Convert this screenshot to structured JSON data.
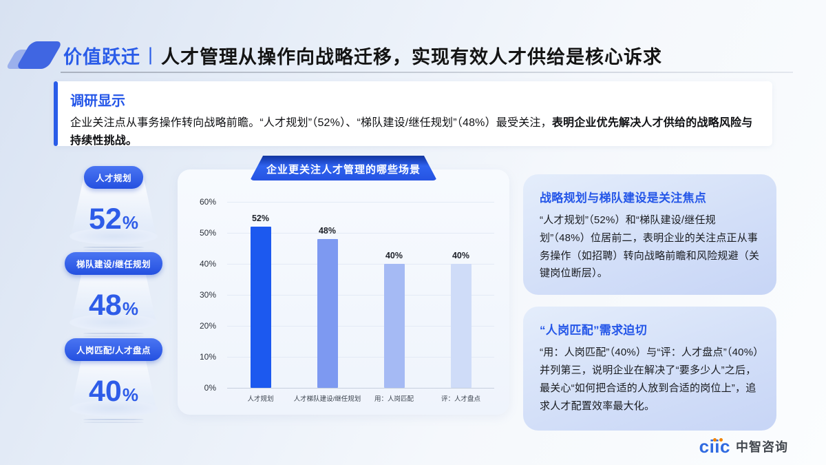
{
  "header": {
    "tag": "价值跃迁",
    "separator": "|",
    "title": "人才管理从操作向战略迁移，实现有效人才供给是核心诉求"
  },
  "callout": {
    "heading": "调研显示",
    "body_normal": "企业关注点从事务操作转向战略前瞻。“人才规划”（52%）、“梯队建设/继任规划”（48%）最受关注，",
    "body_bold": "表明企业优先解决人才供给的战略风险与持续性挑战。"
  },
  "stats": {
    "items": [
      {
        "label": "人才规划",
        "value": "52",
        "suffix": "%"
      },
      {
        "label": "梯队建设/继任规划",
        "value": "48",
        "suffix": "%"
      },
      {
        "label": "人岗匹配/人才盘点",
        "value": "40",
        "suffix": "%"
      }
    ]
  },
  "chart_data": {
    "type": "bar",
    "title": "企业更关注人才管理的哪些场景",
    "categories": [
      "人才规划",
      "人才梯队建设/继任规划",
      "用：人岗匹配",
      "评：人才盘点"
    ],
    "values": [
      52,
      48,
      40,
      40
    ],
    "value_labels": [
      "52%",
      "48%",
      "40%",
      "40%"
    ],
    "bar_colors": [
      "#1c59ef",
      "#7d99f1",
      "#a5baf4",
      "#cfdcf8"
    ],
    "ylim": [
      0,
      60
    ],
    "yticks": [
      "60%",
      "50%",
      "40%",
      "30%",
      "20%",
      "10%",
      "0%"
    ],
    "grid": true,
    "legend": false,
    "xlabel": "",
    "ylabel": ""
  },
  "insights": {
    "cards": [
      {
        "heading": "战略规划与梯队建设是关注焦点",
        "body": "“人才规划”（52%）和“梯队建设/继任规划”（48%）位居前二，表明企业的关注点正从事务操作（如招聘）转向战略前瞻和风险规避（关键岗位断层）。"
      },
      {
        "heading": "“人岗匹配”需求迫切",
        "body": "“用：人岗匹配”（40%）与“评：人才盘点”（40%）并列第三，说明企业在解决了“要多少人”之后，最关心“如何把合适的人放到合适的岗位上”，追求人才配置效率最大化。"
      }
    ]
  },
  "logo": {
    "brand": "ciic",
    "name": "中智咨询"
  },
  "colors": {
    "accent": "#2456e8",
    "primary_bar": "#1c59ef",
    "title_text": "#141414"
  }
}
